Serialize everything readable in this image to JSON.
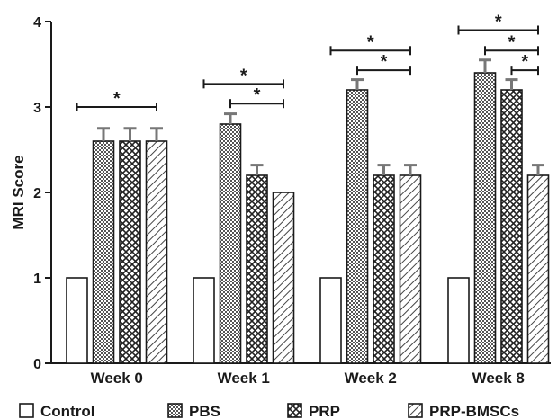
{
  "chart_data": {
    "type": "bar",
    "title": "",
    "xlabel": "",
    "ylabel": "MRI Score",
    "ylim": [
      0,
      4
    ],
    "yticks": [
      "0",
      "1",
      "2",
      "3",
      "4"
    ],
    "grid": false,
    "legend_position": "bottom",
    "categories": [
      "Week 0",
      "Week 1",
      "Week 2",
      "Week 8"
    ],
    "series": [
      {
        "name": "Control",
        "pattern": "open",
        "values": [
          1,
          1,
          1,
          1
        ],
        "errors": [
          0,
          0,
          0,
          0
        ]
      },
      {
        "name": "PBS",
        "pattern": "dense-dots",
        "values": [
          2.6,
          2.8,
          3.2,
          3.4
        ],
        "errors": [
          0.15,
          0.12,
          0.12,
          0.15
        ]
      },
      {
        "name": "PRP",
        "pattern": "crosshatch",
        "values": [
          2.6,
          2.2,
          2.2,
          3.2
        ],
        "errors": [
          0.15,
          0.12,
          0.12,
          0.12
        ]
      },
      {
        "name": "PRP-BMSCs",
        "pattern": "diagonal",
        "values": [
          2.6,
          2.0,
          2.2,
          2.2
        ],
        "errors": [
          0.15,
          0,
          0.12,
          0.12
        ]
      }
    ],
    "significance": [
      {
        "category": 0,
        "from_series": 0,
        "to_series": 3,
        "y": 3.0,
        "label": "*"
      },
      {
        "category": 1,
        "from_series": 0,
        "to_series": 3,
        "y": 3.27,
        "label": "*"
      },
      {
        "category": 1,
        "from_series": 1,
        "to_series": 3,
        "y": 3.04,
        "label": "*"
      },
      {
        "category": 2,
        "from_series": 0,
        "to_series": 3,
        "y": 3.66,
        "label": "*"
      },
      {
        "category": 2,
        "from_series": 1,
        "to_series": 3,
        "y": 3.43,
        "label": "*"
      },
      {
        "category": 3,
        "from_series": 0,
        "to_series": 3,
        "y": 3.9,
        "label": "*"
      },
      {
        "category": 3,
        "from_series": 1,
        "to_series": 3,
        "y": 3.66,
        "label": "*"
      },
      {
        "category": 3,
        "from_series": 2,
        "to_series": 3,
        "y": 3.43,
        "label": "*"
      }
    ]
  }
}
